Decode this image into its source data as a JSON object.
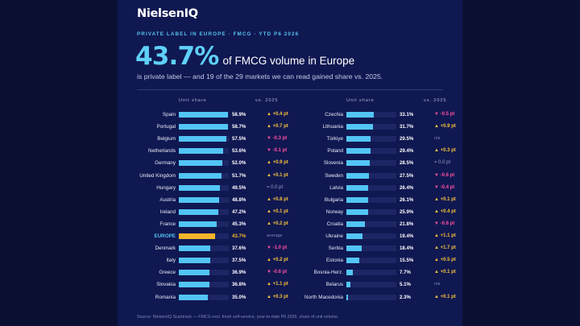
{
  "brand": {
    "logo_text": "NielsenIQ"
  },
  "header": {
    "kicker": "PRIVATE LABEL IN EUROPE · FMCG · YTD P6 2026",
    "big_number": "43.7%",
    "big_number_tail": "of FMCG volume in Europe",
    "subtitle": "is private label — and 19 of the 29 markets we can read gained share vs. 2025."
  },
  "columns": {
    "share_header": "Unit share",
    "change_header": "vs. 2025"
  },
  "footer": {
    "source": "Source: NielsenIQ Scantrack — FMCG excl. fresh self-service, year-to-date P6 2026, share of unit volume."
  },
  "colors": {
    "background": "#0b1033",
    "panel": "#101852",
    "bar": "#52c5f4",
    "bar_track": "#1d2564",
    "europe_bar": "#f3b52a",
    "gain": "#f6c33a",
    "loss": "#ff4fa0",
    "accent": "#56c2ef"
  },
  "chart_data": {
    "type": "bar",
    "orientation": "horizontal",
    "value_unit": "%",
    "xlim": [
      0,
      60
    ],
    "columns": [
      {
        "rows": [
          {
            "name": "Spain",
            "value": 58.9,
            "label": "58.9%",
            "change": "▲ +0.4 pt",
            "dir": "up"
          },
          {
            "name": "Portugal",
            "value": 58.7,
            "label": "58.7%",
            "change": "▲ +0.7 pt",
            "dir": "up"
          },
          {
            "name": "Belgium",
            "value": 57.5,
            "label": "57.5%",
            "change": "▼ -0.3 pt",
            "dir": "down"
          },
          {
            "name": "Netherlands",
            "value": 53.6,
            "label": "53.6%",
            "change": "▼ -0.1 pt",
            "dir": "down"
          },
          {
            "name": "Germany",
            "value": 52.0,
            "label": "52.0%",
            "change": "▲ +0.9 pt",
            "dir": "up"
          },
          {
            "name": "United Kingdom",
            "value": 51.7,
            "label": "51.7%",
            "change": "▲ +0.1 pt",
            "dir": "up"
          },
          {
            "name": "Hungary",
            "value": 49.5,
            "label": "49.5%",
            "change": "= 0.0 pt",
            "dir": "flat"
          },
          {
            "name": "Austria",
            "value": 48.8,
            "label": "48.8%",
            "change": "▲ +0.8 pt",
            "dir": "up"
          },
          {
            "name": "Ireland",
            "value": 47.2,
            "label": "47.2%",
            "change": "▲ +0.1 pt",
            "dir": "up"
          },
          {
            "name": "France",
            "value": 45.3,
            "label": "45.3%",
            "change": "▲ +0.2 pt",
            "dir": "up"
          },
          {
            "name": "EUROPE",
            "value": 43.7,
            "label": "43.7%",
            "change": "average",
            "dir": "note",
            "highlight": true
          },
          {
            "name": "Denmark",
            "value": 37.6,
            "label": "37.6%",
            "change": "▼ -1.0 pt",
            "dir": "down"
          },
          {
            "name": "Italy",
            "value": 37.5,
            "label": "37.5%",
            "change": "▲ +0.2 pt",
            "dir": "up"
          },
          {
            "name": "Greece",
            "value": 36.9,
            "label": "36.9%",
            "change": "▼ -0.6 pt",
            "dir": "down"
          },
          {
            "name": "Slovakia",
            "value": 36.8,
            "label": "36.8%",
            "change": "▲ +1.1 pt",
            "dir": "up"
          },
          {
            "name": "Romania",
            "value": 35.0,
            "label": "35.0%",
            "change": "▲ +0.3 pt",
            "dir": "up"
          }
        ]
      },
      {
        "rows": [
          {
            "name": "Czechia",
            "value": 33.1,
            "label": "33.1%",
            "change": "▼ -0.5 pt",
            "dir": "down"
          },
          {
            "name": "Lithuania",
            "value": 31.7,
            "label": "31.7%",
            "change": "▲ +0.9 pt",
            "dir": "up"
          },
          {
            "name": "Türkiye",
            "value": 29.5,
            "label": "29.5%",
            "change": "n/a",
            "dir": "note"
          },
          {
            "name": "Poland",
            "value": 29.4,
            "label": "29.4%",
            "change": "▲ +0.3 pt",
            "dir": "up"
          },
          {
            "name": "Slovenia",
            "value": 28.5,
            "label": "28.5%",
            "change": "= 0.0 pt",
            "dir": "flat"
          },
          {
            "name": "Sweden",
            "value": 27.5,
            "label": "27.5%",
            "change": "▼ -0.6 pt",
            "dir": "down"
          },
          {
            "name": "Latvia",
            "value": 26.4,
            "label": "26.4%",
            "change": "▼ -0.4 pt",
            "dir": "down"
          },
          {
            "name": "Bulgaria",
            "value": 26.1,
            "label": "26.1%",
            "change": "▲ +0.1 pt",
            "dir": "up"
          },
          {
            "name": "Norway",
            "value": 25.9,
            "label": "25.9%",
            "change": "▲ +0.4 pt",
            "dir": "up"
          },
          {
            "name": "Croatia",
            "value": 21.8,
            "label": "21.8%",
            "change": "▼ -0.6 pt",
            "dir": "down"
          },
          {
            "name": "Ukraine",
            "value": 19.4,
            "label": "19.4%",
            "change": "▲ +1.1 pt",
            "dir": "up"
          },
          {
            "name": "Serbia",
            "value": 18.4,
            "label": "18.4%",
            "change": "▲ +1.7 pt",
            "dir": "up"
          },
          {
            "name": "Estonia",
            "value": 15.5,
            "label": "15.5%",
            "change": "▲ +0.5 pt",
            "dir": "up"
          },
          {
            "name": "Bosnia-Herz.",
            "value": 7.7,
            "label": "7.7%",
            "change": "▲ +0.1 pt",
            "dir": "up"
          },
          {
            "name": "Belarus",
            "value": 5.1,
            "label": "5.1%",
            "change": "n/a",
            "dir": "note"
          },
          {
            "name": "North Macedonia",
            "value": 2.3,
            "label": "2.3%",
            "change": "▲ +0.1 pt",
            "dir": "up"
          }
        ]
      }
    ]
  }
}
